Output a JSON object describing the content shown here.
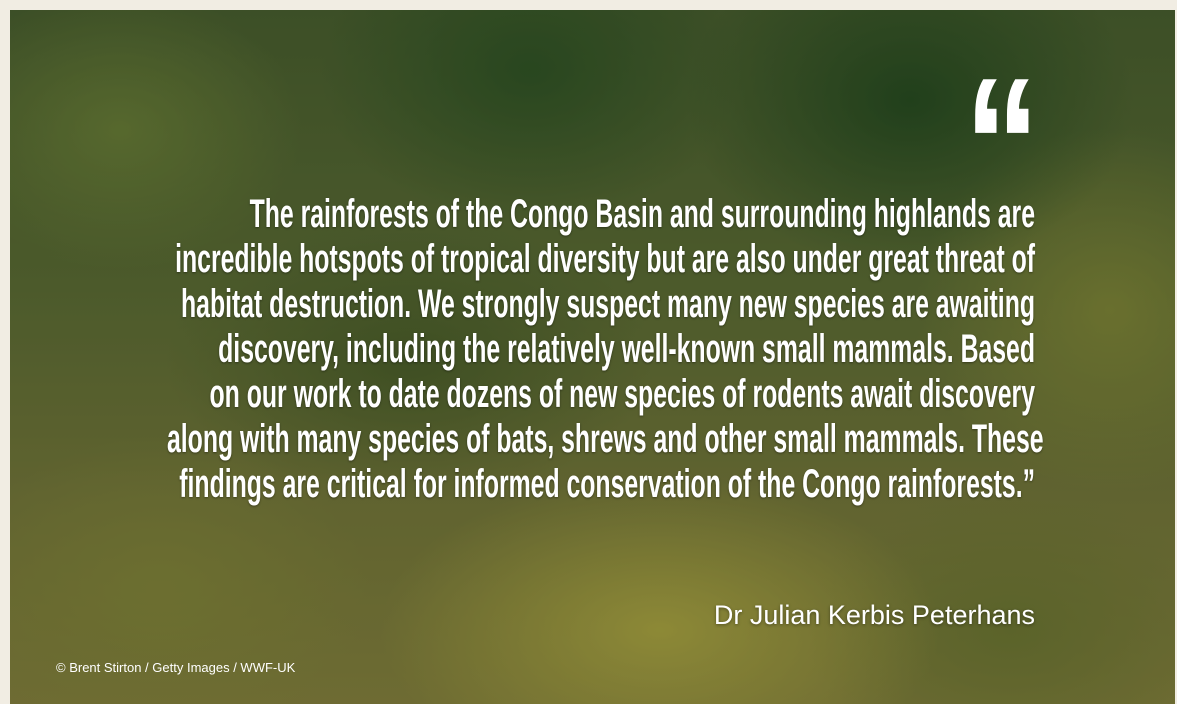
{
  "open_quote": "“",
  "quote_lines": [
    "The rainforests of the Congo Basin and surrounding highlands are",
    "incredible hotspots of tropical diversity but are also under great threat of",
    "habitat destruction. We strongly suspect many new species are awaiting",
    "discovery, including the relatively well-known small mammals. Based",
    "on our work to date dozens of new species of rodents await discovery",
    "along with many species of bats, shrews and other small mammals. These",
    "findings are critical for informed conservation of the Congo rainforests.”"
  ],
  "attribution": "Dr Julian Kerbis Peterhans",
  "credit": "© Brent Stirton / Getty Images / WWF-UK"
}
